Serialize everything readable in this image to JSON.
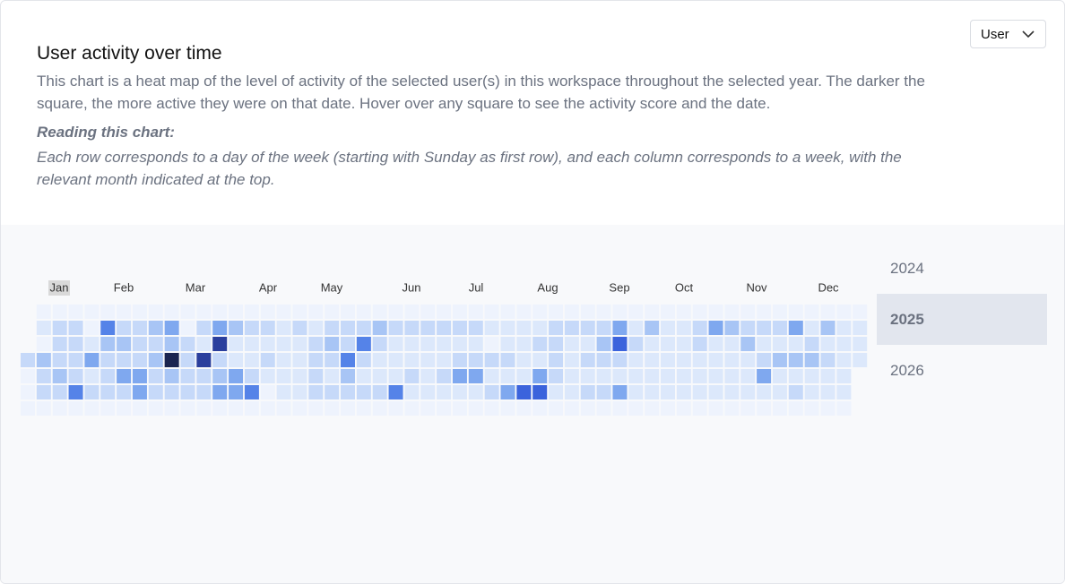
{
  "header": {
    "title": "User activity over time",
    "description": "This chart is a heat map of the level of activity of the selected user(s) in this workspace throughout the selected year. The darker the square, the more active they were on that date. Hover over any square to see the activity score and the date.",
    "reading_title": "Reading this chart:",
    "reading_text": "Each row corresponds to a day of the week (starting with Sunday as first row), and each column corresponds to a week, with the relevant month indicated at the top."
  },
  "dropdown": {
    "label": "User"
  },
  "years": {
    "items": [
      "2024",
      "2025",
      "2026"
    ],
    "selected": 1
  },
  "heatmap": {
    "months": [
      "Jan",
      "Feb",
      "Mar",
      "Apr",
      "May",
      "Jun",
      "Jul",
      "Aug",
      "Sep",
      "Oct",
      "Nov",
      "Dec"
    ],
    "levels": [
      [
        null,
        0,
        0,
        0,
        0,
        0,
        0,
        0,
        0,
        0,
        0,
        0,
        0,
        0,
        0,
        0,
        0,
        0,
        0,
        0,
        0,
        0,
        0,
        0,
        0,
        0,
        0,
        0,
        0,
        0,
        0,
        0,
        0,
        0,
        0,
        0,
        0,
        0,
        0,
        0,
        0,
        0,
        0,
        0,
        0,
        0,
        0,
        0,
        0,
        0,
        0,
        0,
        0
      ],
      [
        null,
        1,
        2,
        2,
        0,
        5,
        2,
        2,
        3,
        4,
        0,
        2,
        4,
        3,
        2,
        2,
        1,
        2,
        1,
        2,
        2,
        2,
        3,
        2,
        2,
        2,
        2,
        2,
        2,
        1,
        1,
        1,
        1,
        2,
        2,
        2,
        2,
        4,
        1,
        3,
        1,
        1,
        2,
        4,
        3,
        2,
        2,
        2,
        4,
        1,
        3,
        1,
        1
      ],
      [
        null,
        0,
        2,
        2,
        1,
        3,
        3,
        2,
        2,
        3,
        2,
        1,
        7,
        1,
        1,
        1,
        1,
        1,
        2,
        3,
        2,
        5,
        2,
        1,
        1,
        1,
        1,
        1,
        1,
        0,
        1,
        1,
        2,
        2,
        1,
        1,
        3,
        6,
        2,
        1,
        1,
        1,
        2,
        1,
        1,
        3,
        1,
        1,
        1,
        2,
        1,
        1,
        1
      ],
      [
        2,
        3,
        2,
        2,
        4,
        2,
        2,
        2,
        3,
        8,
        2,
        7,
        2,
        1,
        1,
        2,
        1,
        1,
        2,
        2,
        5,
        2,
        1,
        1,
        1,
        1,
        1,
        2,
        2,
        2,
        2,
        1,
        1,
        2,
        1,
        2,
        2,
        2,
        1,
        1,
        1,
        1,
        1,
        1,
        1,
        1,
        2,
        3,
        3,
        3,
        2,
        1,
        1
      ],
      [
        0,
        2,
        3,
        2,
        1,
        2,
        4,
        4,
        2,
        3,
        2,
        2,
        3,
        4,
        2,
        1,
        1,
        1,
        2,
        1,
        3,
        1,
        1,
        1,
        2,
        1,
        2,
        4,
        4,
        1,
        1,
        1,
        4,
        2,
        1,
        1,
        1,
        1,
        1,
        1,
        1,
        1,
        1,
        1,
        1,
        1,
        4,
        1,
        1,
        1,
        1,
        1,
        null
      ],
      [
        0,
        2,
        2,
        5,
        2,
        2,
        2,
        4,
        2,
        2,
        2,
        2,
        4,
        4,
        5,
        0,
        1,
        1,
        2,
        2,
        2,
        2,
        2,
        5,
        1,
        1,
        1,
        1,
        1,
        2,
        4,
        6,
        6,
        1,
        1,
        2,
        2,
        4,
        1,
        1,
        1,
        1,
        1,
        1,
        1,
        1,
        1,
        1,
        2,
        1,
        1,
        1,
        null
      ],
      [
        0,
        0,
        0,
        0,
        0,
        0,
        0,
        0,
        0,
        0,
        0,
        0,
        0,
        0,
        0,
        0,
        0,
        0,
        0,
        0,
        0,
        0,
        0,
        0,
        0,
        0,
        0,
        0,
        0,
        0,
        0,
        0,
        0,
        0,
        0,
        0,
        0,
        0,
        0,
        0,
        0,
        0,
        0,
        0,
        0,
        0,
        0,
        0,
        0,
        0,
        0,
        0,
        null
      ]
    ]
  }
}
